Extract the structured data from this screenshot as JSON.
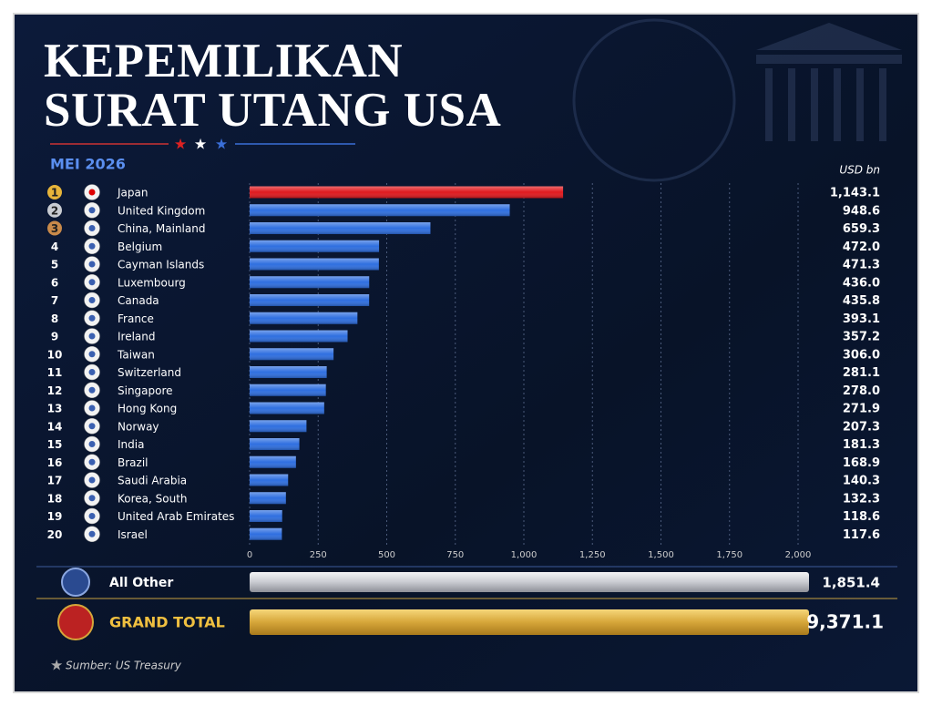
{
  "chart_data": {
    "type": "bar",
    "orientation": "horizontal",
    "title": "KEPEMILIKAN SURAT UTANG USA",
    "subtitle": "MEI 2026",
    "unit": "USD bn",
    "ranks": [
      1,
      2,
      3,
      4,
      5,
      6,
      7,
      8,
      9,
      10,
      11,
      12,
      13,
      14,
      15,
      16,
      17,
      18,
      19,
      20
    ],
    "categories": [
      "Japan",
      "United Kingdom",
      "China, Mainland",
      "Belgium",
      "Cayman Islands",
      "Luxembourg",
      "Canada",
      "France",
      "Ireland",
      "Taiwan",
      "Switzerland",
      "Singapore",
      "Hong Kong",
      "Norway",
      "India",
      "Brazil",
      "Saudi Arabia",
      "Korea, South",
      "United Arab Emirates",
      "Israel"
    ],
    "values": [
      1143.1,
      948.6,
      659.3,
      472.0,
      471.3,
      436.0,
      435.8,
      393.1,
      357.2,
      306.0,
      281.1,
      278.0,
      271.9,
      207.3,
      181.3,
      168.9,
      140.3,
      132.3,
      118.6,
      117.6
    ],
    "value_labels": [
      "1,143.1",
      "948.6",
      "659.3",
      "472.0",
      "471.3",
      "436.0",
      "435.8",
      "393.1",
      "357.2",
      "306.0",
      "281.1",
      "278.0",
      "271.9",
      "207.3",
      "181.3",
      "168.9",
      "140.3",
      "132.3",
      "118.6",
      "117.6"
    ],
    "colors": [
      "#e0191e",
      "#2f6fe0",
      "#2f6fe0",
      "#2f6fe0",
      "#2f6fe0",
      "#2f6fe0",
      "#2f6fe0",
      "#2f6fe0",
      "#2f6fe0",
      "#2f6fe0",
      "#2f6fe0",
      "#2f6fe0",
      "#2f6fe0",
      "#2f6fe0",
      "#2f6fe0",
      "#2f6fe0",
      "#2f6fe0",
      "#2f6fe0",
      "#2f6fe0",
      "#2f6fe0"
    ],
    "xlim": [
      0,
      2100
    ],
    "xticks": [
      0,
      250,
      500,
      750,
      {
        "value": 1000,
        "label": "1,000"
      },
      {
        "value": 1250,
        "label": "1,250"
      },
      {
        "value": 1500,
        "label": "1,500"
      },
      {
        "value": 1750,
        "label": "1,750"
      },
      {
        "value": 2000,
        "label": "2,000"
      }
    ],
    "grid": true,
    "summary": [
      {
        "label": "All Other",
        "value": 1851.4,
        "value_label": "1,851.4"
      },
      {
        "label": "GRAND TOTAL",
        "value": 9371.1,
        "value_label": "9,371.1"
      }
    ],
    "source": "Sumber: US Treasury"
  }
}
